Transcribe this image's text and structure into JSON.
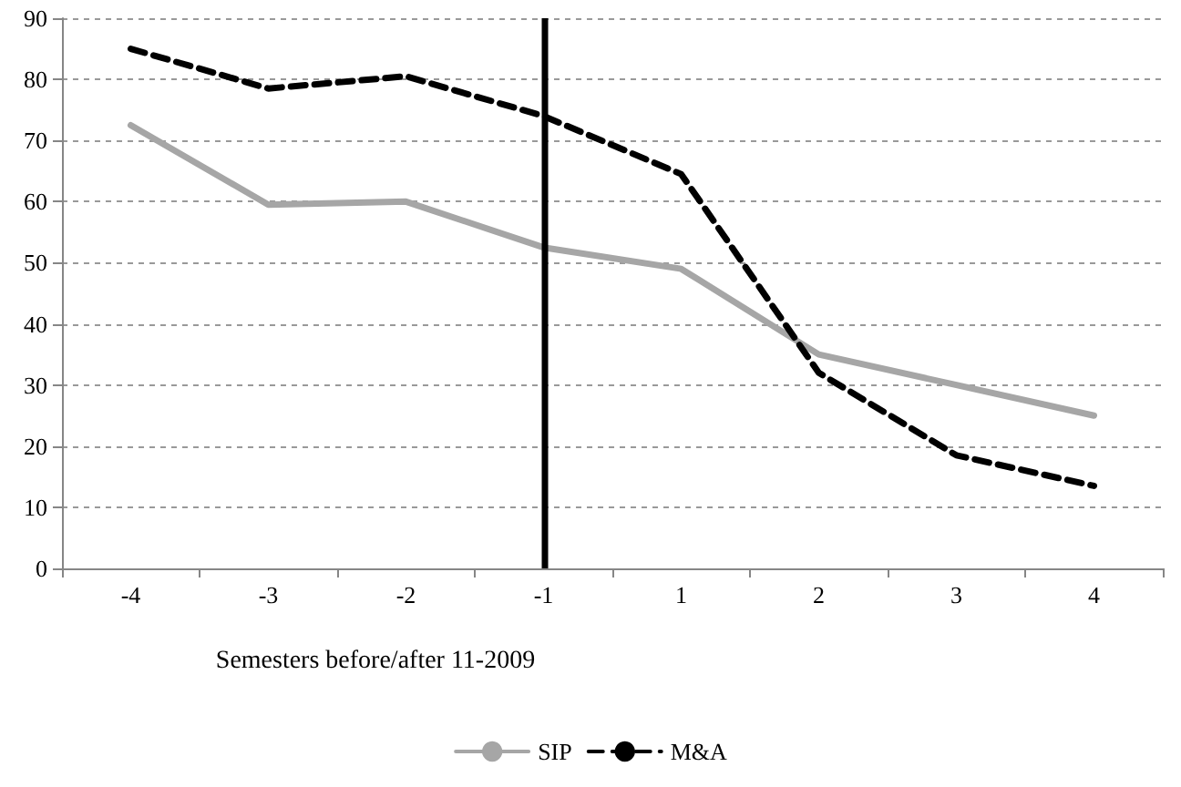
{
  "chart_data": {
    "type": "line",
    "xlabel": "Semesters before/after 11-2009",
    "categories": [
      "-4",
      "-3",
      "-2",
      "-1",
      "1",
      "2",
      "3",
      "4"
    ],
    "series": [
      {
        "name": "SIP",
        "color": "#a6a6a6",
        "line_style": "solid",
        "values": [
          72.5,
          59.5,
          60,
          52.5,
          49,
          35,
          30,
          25
        ]
      },
      {
        "name": "M&A",
        "color": "#000000",
        "line_style": "dashed",
        "values": [
          85,
          78.5,
          80.5,
          74,
          64.5,
          32,
          18.5,
          13.5
        ]
      }
    ],
    "ylim": [
      0,
      90
    ],
    "yticks": [
      0,
      10,
      20,
      30,
      40,
      50,
      60,
      70,
      80,
      90
    ],
    "ref_lines": [
      {
        "axis": "x",
        "value": "-1",
        "color": "#000000",
        "line_style": "solid"
      }
    ],
    "grid": "y",
    "legend": "bottom",
    "marker": "none"
  }
}
